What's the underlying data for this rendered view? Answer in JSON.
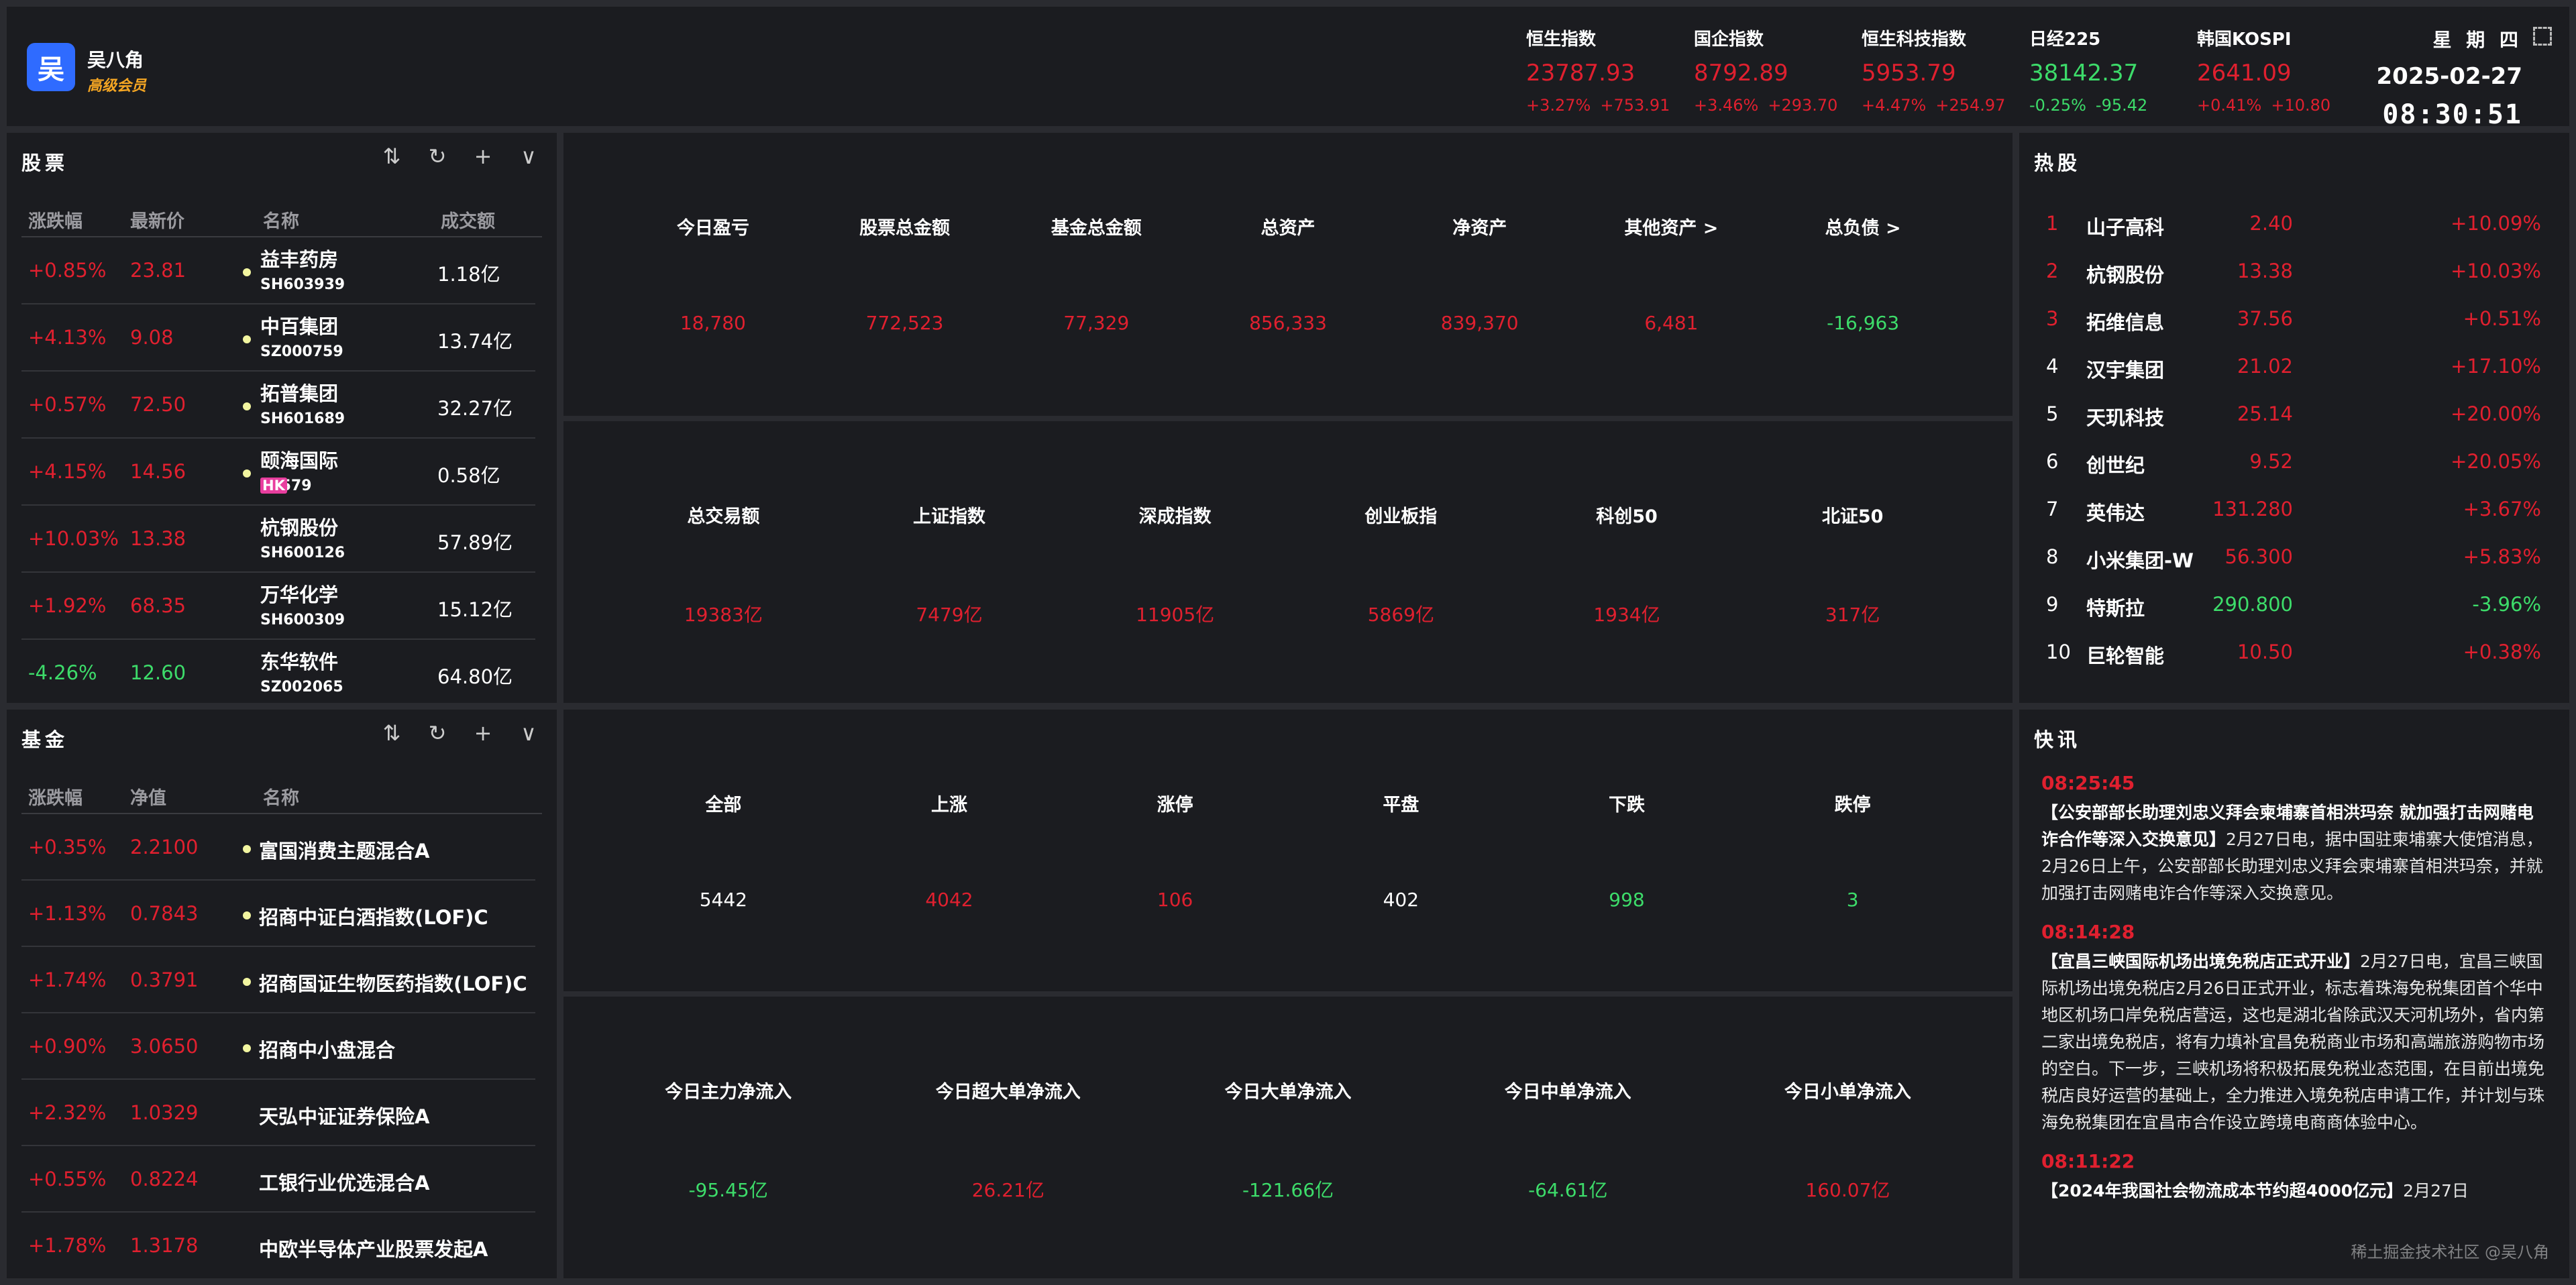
{
  "colors": {
    "background": "#2a2b30",
    "panel": "#1b1c20",
    "up": "#e0202f",
    "down": "#3ddc6a",
    "accent": "#2f6bff",
    "member": "#f5a623",
    "hk_badge": "#e83e9e"
  },
  "user": {
    "avatar_char": "吴",
    "name": "吴八角",
    "level": "高级会员"
  },
  "indices": [
    {
      "name": "恒生指数",
      "value": "23787.93",
      "pct": "+3.27%",
      "chg": "+753.91",
      "dir": "up"
    },
    {
      "name": "国企指数",
      "value": "8792.89",
      "pct": "+3.46%",
      "chg": "+293.70",
      "dir": "up"
    },
    {
      "name": "恒生科技指数",
      "value": "5953.79",
      "pct": "+4.47%",
      "chg": "+254.97",
      "dir": "up"
    },
    {
      "name": "日经225",
      "value": "38142.37",
      "pct": "-0.25%",
      "chg": "-95.42",
      "dir": "down"
    },
    {
      "name": "韩国KOSPI",
      "value": "2641.09",
      "pct": "+0.41%",
      "chg": "+10.80",
      "dir": "up"
    }
  ],
  "clock": {
    "weekday": "星 期 四",
    "date": "2025-02-27",
    "time": "08:30:51",
    "fullscreen_icon": "fullscreen-icon"
  },
  "tools": {
    "sort": "⇅",
    "refresh": "↻",
    "add": "+",
    "collapse": "∨"
  },
  "stocks": {
    "title": "股票",
    "headers": [
      "涨跌幅",
      "最新价",
      "名称",
      "成交额"
    ],
    "rows": [
      {
        "pct": "+0.85%",
        "price": "23.81",
        "name": "益丰药房",
        "code": "SH603939",
        "amount": "1.18亿",
        "dir": "up",
        "dot": true
      },
      {
        "pct": "+4.13%",
        "price": "9.08",
        "name": "中百集团",
        "code": "SZ000759",
        "amount": "13.74亿",
        "dir": "up",
        "dot": true
      },
      {
        "pct": "+0.57%",
        "price": "72.50",
        "name": "拓普集团",
        "code": "SH601689",
        "amount": "32.27亿",
        "dir": "up",
        "dot": true
      },
      {
        "pct": "+4.15%",
        "price": "14.56",
        "name": "颐海国际",
        "market": "HK",
        "code": "01579",
        "amount": "0.58亿",
        "dir": "up",
        "dot": true
      },
      {
        "pct": "+10.03%",
        "price": "13.38",
        "name": "杭钢股份",
        "code": "SH600126",
        "amount": "57.89亿",
        "dir": "up",
        "dot": false
      },
      {
        "pct": "+1.92%",
        "price": "68.35",
        "name": "万华化学",
        "code": "SH600309",
        "amount": "15.12亿",
        "dir": "up",
        "dot": false
      },
      {
        "pct": "-4.26%",
        "price": "12.60",
        "name": "东华软件",
        "code": "SZ002065",
        "amount": "64.80亿",
        "dir": "down",
        "dot": false
      }
    ]
  },
  "funds": {
    "title": "基金",
    "headers": [
      "涨跌幅",
      "净值",
      "名称"
    ],
    "rows": [
      {
        "pct": "+0.35%",
        "nav": "2.2100",
        "name": "富国消费主题混合A",
        "dot": true
      },
      {
        "pct": "+1.13%",
        "nav": "0.7843",
        "name": "招商中证白酒指数(LOF)C",
        "dot": true
      },
      {
        "pct": "+1.74%",
        "nav": "0.3791",
        "name": "招商国证生物医药指数(LOF)C",
        "dot": true
      },
      {
        "pct": "+0.90%",
        "nav": "3.0650",
        "name": "招商中小盘混合",
        "dot": true
      },
      {
        "pct": "+2.32%",
        "nav": "1.0329",
        "name": "天弘中证证券保险A",
        "dot": false
      },
      {
        "pct": "+0.55%",
        "nav": "0.8224",
        "name": "工银行业优选混合A",
        "dot": false
      },
      {
        "pct": "+1.78%",
        "nav": "1.3178",
        "name": "中欧半导体产业股票发起A",
        "dot": false
      }
    ]
  },
  "assets": [
    {
      "label": "今日盈亏",
      "value": "18,780",
      "dir": "up"
    },
    {
      "label": "股票总金额",
      "value": "772,523",
      "dir": "up"
    },
    {
      "label": "基金总金额",
      "value": "77,329",
      "dir": "up"
    },
    {
      "label": "总资产",
      "value": "856,333",
      "dir": "up"
    },
    {
      "label": "净资产",
      "value": "839,370",
      "dir": "up"
    },
    {
      "label": "其他资产 >",
      "value": "6,481",
      "dir": "up"
    },
    {
      "label": "总负债 >",
      "value": "-16,963",
      "dir": "down"
    }
  ],
  "market": [
    {
      "label": "总交易额",
      "value": "19383亿",
      "dir": "up"
    },
    {
      "label": "上证指数",
      "value": "7479亿",
      "dir": "up"
    },
    {
      "label": "深成指数",
      "value": "11905亿",
      "dir": "up"
    },
    {
      "label": "创业板指",
      "value": "5869亿",
      "dir": "up"
    },
    {
      "label": "科创50",
      "value": "1934亿",
      "dir": "up"
    },
    {
      "label": "北证50",
      "value": "317亿",
      "dir": "up"
    }
  ],
  "breadth": [
    {
      "label": "全部",
      "value": "5442",
      "dir": "white"
    },
    {
      "label": "上涨",
      "value": "4042",
      "dir": "up"
    },
    {
      "label": "涨停",
      "value": "106",
      "dir": "up"
    },
    {
      "label": "平盘",
      "value": "402",
      "dir": "white"
    },
    {
      "label": "下跌",
      "value": "998",
      "dir": "down"
    },
    {
      "label": "跌停",
      "value": "3",
      "dir": "down"
    }
  ],
  "flows": [
    {
      "label": "今日主力净流入",
      "value": "-95.45亿",
      "dir": "down"
    },
    {
      "label": "今日超大单净流入",
      "value": "26.21亿",
      "dir": "up"
    },
    {
      "label": "今日大单净流入",
      "value": "-121.66亿",
      "dir": "down"
    },
    {
      "label": "今日中单净流入",
      "value": "-64.61亿",
      "dir": "down"
    },
    {
      "label": "今日小单净流入",
      "value": "160.07亿",
      "dir": "up"
    }
  ],
  "hot": {
    "title": "热股",
    "rows": [
      {
        "rank": "1",
        "name": "山子高科",
        "price": "2.40",
        "pct": "+10.09%",
        "dir": "up",
        "top": true
      },
      {
        "rank": "2",
        "name": "杭钢股份",
        "price": "13.38",
        "pct": "+10.03%",
        "dir": "up",
        "top": true
      },
      {
        "rank": "3",
        "name": "拓维信息",
        "price": "37.56",
        "pct": "+0.51%",
        "dir": "up",
        "top": true
      },
      {
        "rank": "4",
        "name": "汉宇集团",
        "price": "21.02",
        "pct": "+17.10%",
        "dir": "up"
      },
      {
        "rank": "5",
        "name": "天玑科技",
        "price": "25.14",
        "pct": "+20.00%",
        "dir": "up"
      },
      {
        "rank": "6",
        "name": "创世纪",
        "price": "9.52",
        "pct": "+20.05%",
        "dir": "up"
      },
      {
        "rank": "7",
        "name": "英伟达",
        "price": "131.280",
        "pct": "+3.67%",
        "dir": "up"
      },
      {
        "rank": "8",
        "name": "小米集团-W",
        "price": "56.300",
        "pct": "+5.83%",
        "dir": "up"
      },
      {
        "rank": "9",
        "name": "特斯拉",
        "price": "290.800",
        "pct": "-3.96%",
        "dir": "down"
      },
      {
        "rank": "10",
        "name": "巨轮智能",
        "price": "10.50",
        "pct": "+0.38%",
        "dir": "up"
      }
    ]
  },
  "news": {
    "title": "快讯",
    "items": [
      {
        "time": "08:25:45",
        "headline": "【公安部部长助理刘忠义拜会柬埔寨首相洪玛奈 就加强打击网赌电诈合作等深入交换意见】",
        "body": "2月27日电，据中国驻柬埔寨大使馆消息，2月26日上午，公安部部长助理刘忠义拜会柬埔寨首相洪玛奈，并就加强打击网赌电诈合作等深入交换意见。"
      },
      {
        "time": "08:14:28",
        "headline": "【宜昌三峡国际机场出境免税店正式开业】",
        "body": "2月27日电，宜昌三峡国际机场出境免税店2月26日正式开业，标志着珠海免税集团首个华中地区机场口岸免税店营运，这也是湖北省除武汉天河机场外，省内第二家出境免税店，将有力填补宜昌免税商业市场和高端旅游购物市场的空白。下一步，三峡机场将积极拓展免税业态范围，在目前出境免税店良好运营的基础上，全力推进入境免税店申请工作，并计划与珠海免税集团在宜昌市合作设立跨境电商商体验中心。"
      },
      {
        "time": "08:11:22",
        "headline": "【2024年我国社会物流成本节约超4000亿元】",
        "body": "2月27日"
      }
    ]
  },
  "watermark": "稀土掘金技术社区 @吴八角"
}
